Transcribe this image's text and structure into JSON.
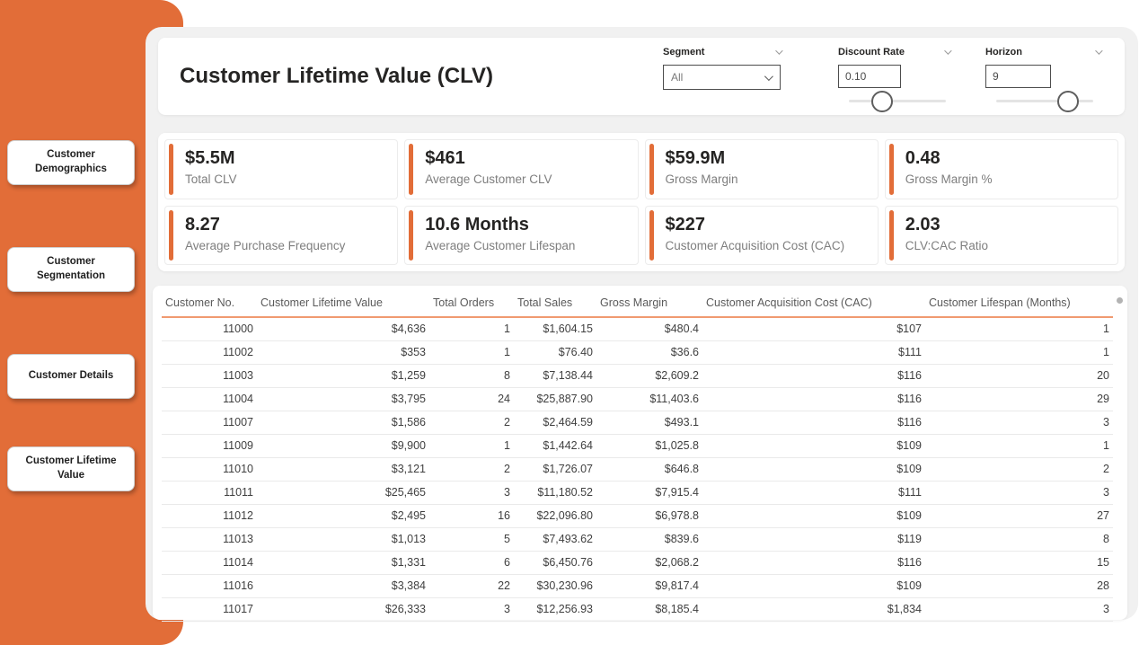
{
  "theme": {
    "accent_orange": "#E26D38",
    "canvas_gray": "#F1F1F1",
    "table_header_underline": "#F09A70",
    "text_dark": "#252423",
    "text_gray": "#7E7E7E"
  },
  "sidebar": {
    "items": [
      {
        "label": "Customer Demographics"
      },
      {
        "label": "Customer Segmentation"
      },
      {
        "label": "Customer Details"
      },
      {
        "label": "Customer Lifetime Value"
      }
    ]
  },
  "header": {
    "title": "Customer Lifetime Value (CLV)",
    "slicers": {
      "segment": {
        "label": "Segment",
        "value": "All",
        "chevron_icon": "chevron-down-icon"
      },
      "discount_rate": {
        "label": "Discount Rate",
        "value": "0.10",
        "slider_pct": 34
      },
      "horizon": {
        "label": "Horizon",
        "value": "9",
        "slider_pct": 74
      }
    }
  },
  "kpis": [
    {
      "value": "$5.5M",
      "label": "Total CLV"
    },
    {
      "value": "$461",
      "label": "Average Customer CLV"
    },
    {
      "value": "$59.9M",
      "label": "Gross Margin"
    },
    {
      "value": "0.48",
      "label": "Gross Margin %"
    },
    {
      "value": "8.27",
      "label": "Average Purchase Frequency"
    },
    {
      "value": "10.6 Months",
      "label": "Average Customer Lifespan"
    },
    {
      "value": "$227",
      "label": "Customer Acquisition Cost (CAC)"
    },
    {
      "value": "2.03",
      "label": "CLV:CAC Ratio"
    }
  ],
  "table": {
    "columns": [
      "Customer No.",
      "Customer Lifetime Value",
      "Total Orders",
      "Total Sales",
      "Gross Margin",
      "Customer Acquisition Cost (CAC)",
      "Customer Lifespan (Months)"
    ],
    "rows": [
      [
        "11000",
        "$4,636",
        "1",
        "$1,604.15",
        "$480.4",
        "$107",
        "1"
      ],
      [
        "11002",
        "$353",
        "1",
        "$76.40",
        "$36.6",
        "$111",
        "1"
      ],
      [
        "11003",
        "$1,259",
        "8",
        "$7,138.44",
        "$2,609.2",
        "$116",
        "20"
      ],
      [
        "11004",
        "$3,795",
        "24",
        "$25,887.90",
        "$11,403.6",
        "$116",
        "29"
      ],
      [
        "11007",
        "$1,586",
        "2",
        "$2,464.59",
        "$493.1",
        "$116",
        "3"
      ],
      [
        "11009",
        "$9,900",
        "1",
        "$1,442.64",
        "$1,025.8",
        "$109",
        "1"
      ],
      [
        "11010",
        "$3,121",
        "2",
        "$1,726.07",
        "$646.8",
        "$109",
        "2"
      ],
      [
        "11011",
        "$25,465",
        "3",
        "$11,180.52",
        "$7,915.4",
        "$111",
        "3"
      ],
      [
        "11012",
        "$2,495",
        "16",
        "$22,096.80",
        "$6,978.8",
        "$109",
        "27"
      ],
      [
        "11013",
        "$1,013",
        "5",
        "$7,493.62",
        "$839.6",
        "$119",
        "8"
      ],
      [
        "11014",
        "$1,331",
        "6",
        "$6,450.76",
        "$2,068.2",
        "$116",
        "15"
      ],
      [
        "11016",
        "$3,384",
        "22",
        "$30,230.96",
        "$9,817.4",
        "$109",
        "28"
      ],
      [
        "11017",
        "$26,333",
        "3",
        "$12,256.93",
        "$8,185.4",
        "$1,834",
        "3"
      ]
    ]
  }
}
